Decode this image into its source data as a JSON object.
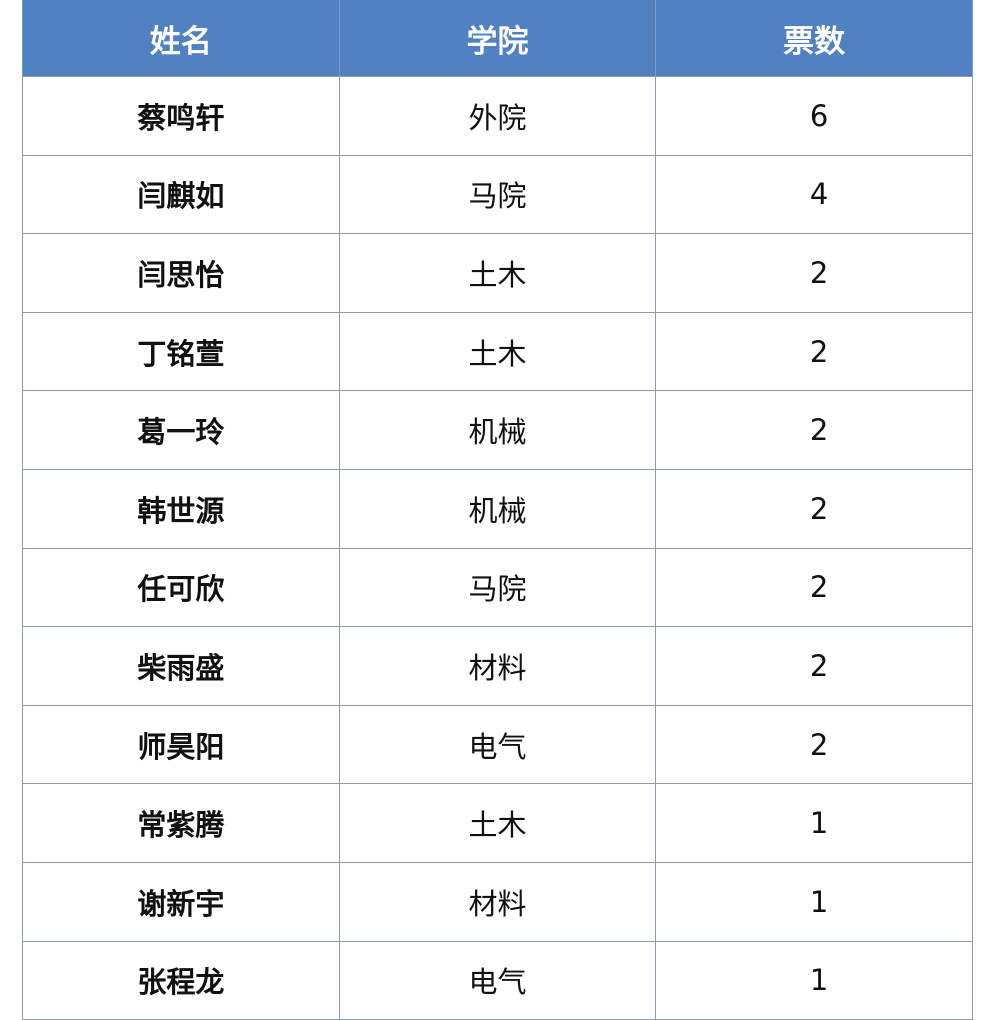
{
  "table": {
    "header_color": "#5181c0",
    "columns": [
      "姓名",
      "学院",
      "票数"
    ],
    "rows": [
      {
        "name": "蔡鸣轩",
        "college": "外院",
        "votes": "6"
      },
      {
        "name": "闫麒如",
        "college": "马院",
        "votes": "4"
      },
      {
        "name": "闫思怡",
        "college": "土木",
        "votes": "2"
      },
      {
        "name": "丁铭萱",
        "college": "土木",
        "votes": "2"
      },
      {
        "name": "葛一玲",
        "college": "机械",
        "votes": "2"
      },
      {
        "name": "韩世源",
        "college": "机械",
        "votes": "2"
      },
      {
        "name": "任可欣",
        "college": "马院",
        "votes": "2"
      },
      {
        "name": "柴雨盛",
        "college": "材料",
        "votes": "2"
      },
      {
        "name": "师昊阳",
        "college": "电气",
        "votes": "2"
      },
      {
        "name": "常紫腾",
        "college": "土木",
        "votes": "1"
      },
      {
        "name": "谢新宇",
        "college": "材料",
        "votes": "1"
      },
      {
        "name": "张程龙",
        "college": "电气",
        "votes": "1"
      }
    ]
  }
}
